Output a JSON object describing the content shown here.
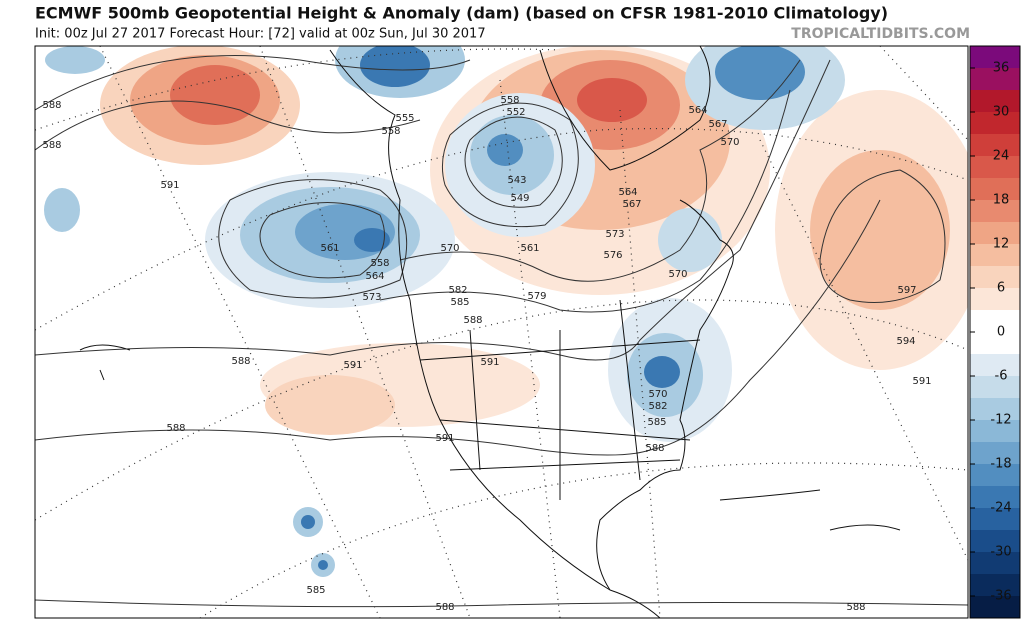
{
  "header": {
    "title": "ECMWF 500mb Geopotential Height & Anomaly (dam) (based on CFSR 1981-2010 Climatology)",
    "subtitle": "Init: 00z Jul 27 2017   Forecast Hour: [72]   valid at 00z Sun, Jul 30 2017",
    "watermark": "TROPICALTIDBITS.COM"
  },
  "colorbar": {
    "range": [
      -39,
      39
    ],
    "ticks": [
      36,
      30,
      24,
      18,
      12,
      6,
      0,
      -6,
      -12,
      -18,
      -24,
      -30,
      -36
    ],
    "colors": [
      "#7b0a7b",
      "#9a1060",
      "#b2182b",
      "#c1272d",
      "#cf3f3a",
      "#d9584a",
      "#e06f58",
      "#e88a6f",
      "#efa585",
      "#f5bea0",
      "#f9d4bd",
      "#fce6d8",
      "#ffffff",
      "#ffffff",
      "#dfeaf3",
      "#c6dcea",
      "#a9cbe1",
      "#8bb8d7",
      "#6ea3cc",
      "#528ec0",
      "#3a78b2",
      "#2862a0",
      "#1a4d8a",
      "#113b73",
      "#0a2b5c",
      "#061d45"
    ]
  },
  "contour_labels": [
    588,
    588,
    591,
    555,
    558,
    558,
    552,
    543,
    549,
    561,
    570,
    561,
    558,
    564,
    573,
    582,
    585,
    588,
    564,
    567,
    570,
    564,
    567,
    573,
    576,
    579,
    570,
    597,
    594,
    591,
    588,
    591,
    591,
    591,
    570,
    582,
    585,
    588,
    588,
    585,
    588,
    588
  ]
}
